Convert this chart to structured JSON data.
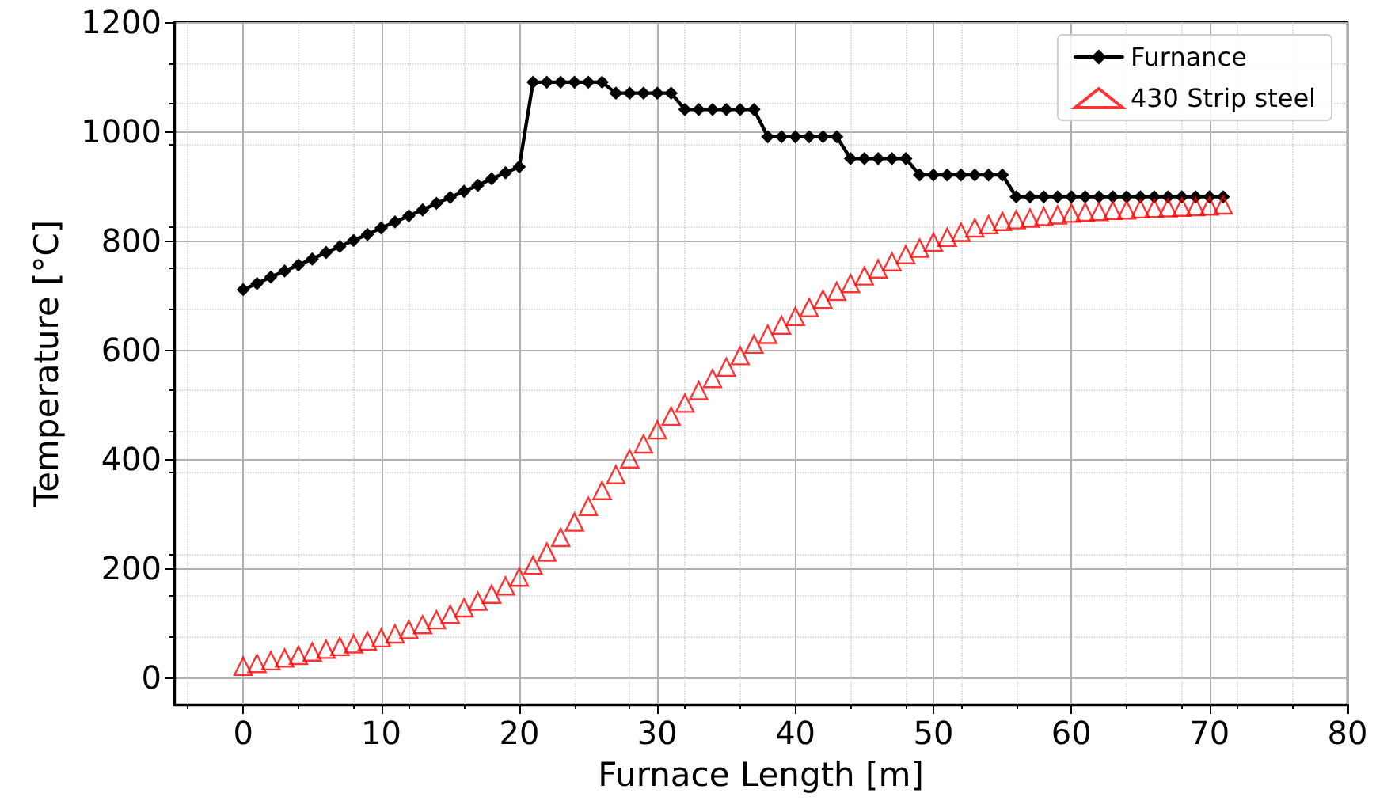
{
  "chart_data": {
    "type": "line",
    "xlabel": "Furnace Length [m]",
    "ylabel": "Temperature [°C]",
    "x": [
      0,
      1,
      2,
      3,
      4,
      5,
      6,
      7,
      8,
      9,
      10,
      11,
      12,
      13,
      14,
      15,
      16,
      17,
      18,
      19,
      20,
      21,
      22,
      23,
      24,
      25,
      26,
      27,
      28,
      29,
      30,
      31,
      32,
      33,
      34,
      35,
      36,
      37,
      38,
      39,
      40,
      41,
      42,
      43,
      44,
      45,
      46,
      47,
      48,
      49,
      50,
      51,
      52,
      53,
      54,
      55,
      56,
      57,
      58,
      59,
      60,
      61,
      62,
      63,
      64,
      65,
      66,
      67,
      68,
      69,
      70,
      71
    ],
    "series": [
      {
        "name": "Furnance",
        "color": "#000000",
        "marker": "diamond",
        "line_style": "solid",
        "values": [
          710,
          721,
          733,
          744,
          755,
          766,
          778,
          789,
          800,
          811,
          823,
          834,
          845,
          856,
          868,
          879,
          890,
          901,
          913,
          924,
          935,
          1090,
          1090,
          1090,
          1090,
          1090,
          1090,
          1070,
          1070,
          1070,
          1070,
          1070,
          1040,
          1040,
          1040,
          1040,
          1040,
          1040,
          990,
          990,
          990,
          990,
          990,
          990,
          950,
          950,
          950,
          950,
          950,
          920,
          920,
          920,
          920,
          920,
          920,
          920,
          880,
          880,
          880,
          880,
          880,
          880,
          880,
          880,
          880,
          880,
          880,
          880,
          880,
          880,
          880,
          880
        ]
      },
      {
        "name": "430 Strip steel",
        "type": "scatter",
        "color": "#ff0000",
        "marker": "triangle",
        "values": [
          20,
          25,
          30,
          35,
          40,
          46,
          51,
          56,
          61,
          66,
          72,
          79,
          87,
          96,
          105,
          115,
          127,
          139,
          152,
          167,
          183,
          205,
          229,
          256,
          284,
          313,
          342,
          371,
          400,
          427,
          453,
          478,
          502,
          525,
          547,
          568,
          589,
          610,
          628,
          645,
          661,
          677,
          692,
          707,
          721,
          735,
          748,
          761,
          774,
          786,
          797,
          806,
          815,
          823,
          829,
          835,
          838,
          841,
          844,
          847,
          850,
          852,
          853,
          855,
          856,
          858,
          859,
          860,
          861,
          862,
          863,
          865
        ]
      }
    ],
    "xlim": [
      -5,
      80
    ],
    "xticks": [
      0,
      10,
      20,
      30,
      40,
      50,
      60,
      70,
      80
    ],
    "ylim": [
      -50,
      1200
    ],
    "yticks": [
      0,
      200,
      400,
      600,
      800,
      1000,
      1200
    ],
    "grid": true,
    "legend": "top right"
  }
}
